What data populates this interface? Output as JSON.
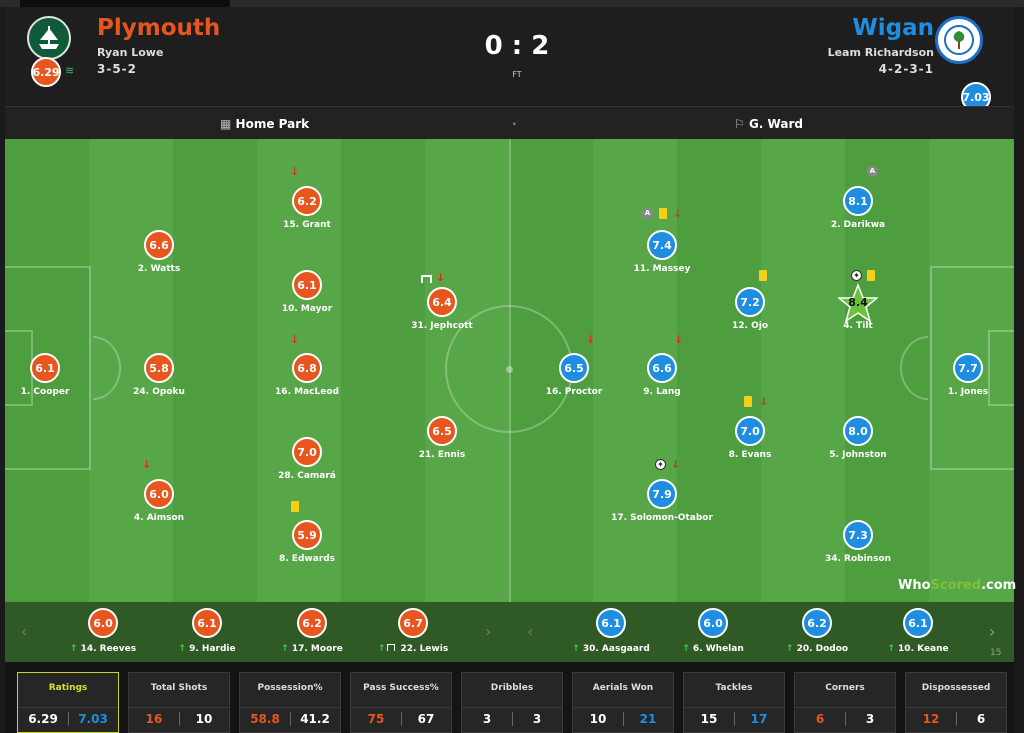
{
  "match": {
    "home": {
      "name": "Plymouth",
      "manager": "Ryan Lowe",
      "formation": "3-5-2",
      "rating": "6.29",
      "color": "#e8561f"
    },
    "away": {
      "name": "Wigan",
      "manager": "Leam Richardson",
      "formation": "4-2-3-1",
      "rating": "7.03",
      "color": "#1f8ee0"
    },
    "score": "0 : 2",
    "status": "FT",
    "stadium": "Home Park",
    "separator": "·",
    "referee": "G. Ward"
  },
  "players": {
    "home": [
      {
        "label": "1. Cooper",
        "rating": "6.1"
      },
      {
        "label": "2. Watts",
        "rating": "6.6"
      },
      {
        "label": "24. Opoku",
        "rating": "5.8"
      },
      {
        "label": "4. Aimson",
        "rating": "6.0"
      },
      {
        "label": "15. Grant",
        "rating": "6.2"
      },
      {
        "label": "10. Mayor",
        "rating": "6.1"
      },
      {
        "label": "16. MacLeod",
        "rating": "6.8"
      },
      {
        "label": "28. Camará",
        "rating": "7.0"
      },
      {
        "label": "8. Edwards",
        "rating": "5.9"
      },
      {
        "label": "31. Jephcott",
        "rating": "6.4"
      },
      {
        "label": "21. Ennis",
        "rating": "6.5"
      }
    ],
    "away": [
      {
        "label": "1. Jones",
        "rating": "7.7"
      },
      {
        "label": "2. Darikwa",
        "rating": "8.1"
      },
      {
        "label": "4. Tilt",
        "rating": "8.4"
      },
      {
        "label": "5. Johnston",
        "rating": "8.0"
      },
      {
        "label": "34. Robinson",
        "rating": "7.3"
      },
      {
        "label": "11. Massey",
        "rating": "7.4"
      },
      {
        "label": "12. Ojo",
        "rating": "7.2"
      },
      {
        "label": "8. Evans",
        "rating": "7.0"
      },
      {
        "label": "9. Lang",
        "rating": "6.6"
      },
      {
        "label": "16. Proctor",
        "rating": "6.5"
      },
      {
        "label": "17. Solomon-Otabor",
        "rating": "7.9"
      }
    ]
  },
  "subs": {
    "home": [
      {
        "label": "14. Reeves",
        "rating": "6.0"
      },
      {
        "label": "9. Hardie",
        "rating": "6.1"
      },
      {
        "label": "17. Moore",
        "rating": "6.2"
      },
      {
        "label": "22. Lewis",
        "rating": "6.7"
      }
    ],
    "away": [
      {
        "label": "30. Aasgaard",
        "rating": "6.1"
      },
      {
        "label": "6. Whelan",
        "rating": "6.0"
      },
      {
        "label": "20. Dodoo",
        "rating": "6.2"
      },
      {
        "label": "10. Keane",
        "rating": "6.1"
      }
    ],
    "partial": "15",
    "prev_icon": "chevron-left-icon",
    "next_icon": "chevron-right-icon"
  },
  "stats": [
    {
      "label": "Ratings",
      "home": "6.29",
      "away": "7.03"
    },
    {
      "label": "Total Shots",
      "home": "16",
      "away": "10"
    },
    {
      "label": "Possession%",
      "home": "58.8",
      "away": "41.2"
    },
    {
      "label": "Pass Success%",
      "home": "75",
      "away": "67"
    },
    {
      "label": "Dribbles",
      "home": "3",
      "away": "3"
    },
    {
      "label": "Aerials Won",
      "home": "10",
      "away": "21"
    },
    {
      "label": "Tackles",
      "home": "15",
      "away": "17"
    },
    {
      "label": "Corners",
      "home": "6",
      "away": "3"
    },
    {
      "label": "Dispossessed",
      "home": "12",
      "away": "6"
    }
  ],
  "brand": {
    "who": "Who",
    "scored": "Scored",
    "dotcom": ".com"
  },
  "icons": {
    "stadium": "stadium-icon",
    "referee": "whistle-icon",
    "sub_off": "arrow-down-icon",
    "sub_on": "arrow-up-icon",
    "yellow": "yellow-card-icon",
    "goal": "ball-icon",
    "captain": "captain-icon",
    "assist": "goalpost-icon",
    "motm": "star-icon"
  }
}
